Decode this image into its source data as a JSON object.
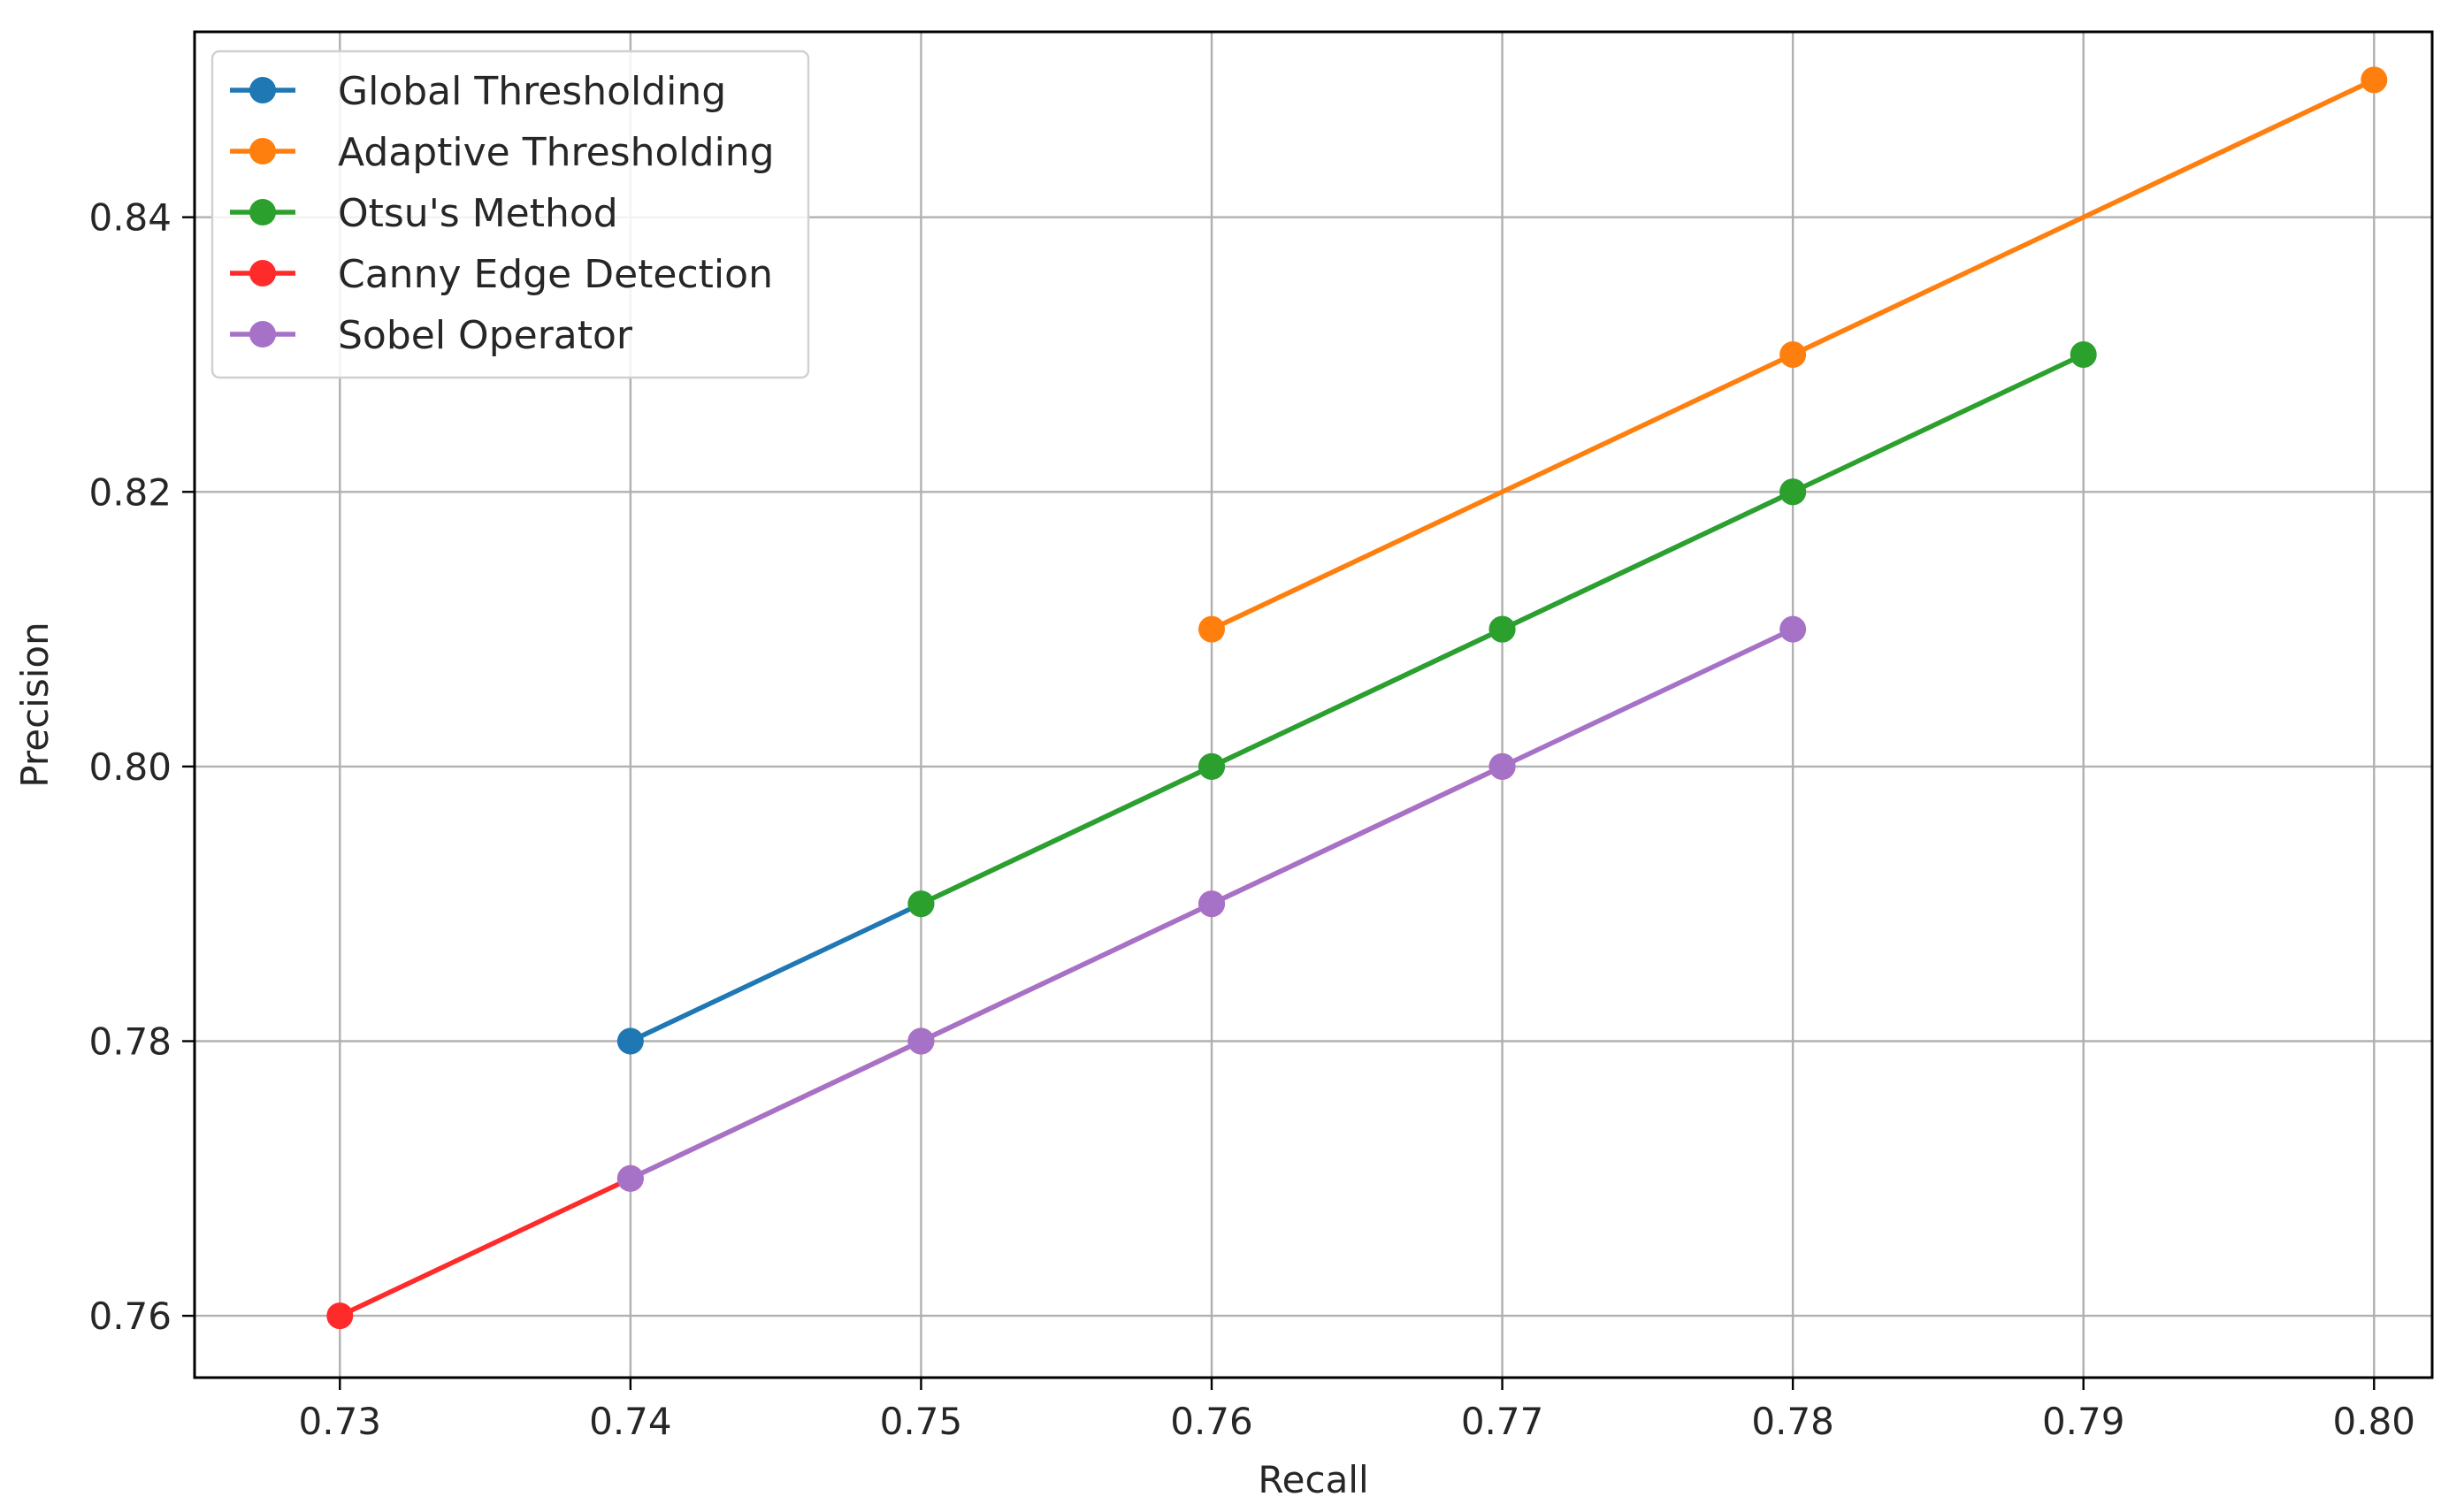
{
  "chart_data": {
    "type": "line",
    "title": "",
    "xlabel": "Recall",
    "ylabel": "Precision",
    "xlim": [
      0.725,
      0.802
    ],
    "ylim": [
      0.7555,
      0.8535
    ],
    "xticks": [
      "0.73",
      "0.74",
      "0.75",
      "0.76",
      "0.77",
      "0.78",
      "0.79",
      "0.80"
    ],
    "xtick_values": [
      0.73,
      0.74,
      0.75,
      0.76,
      0.77,
      0.78,
      0.79,
      0.8
    ],
    "yticks": [
      "0.76",
      "0.78",
      "0.80",
      "0.82",
      "0.84"
    ],
    "ytick_values": [
      0.76,
      0.78,
      0.8,
      0.82,
      0.84
    ],
    "grid": true,
    "legend_position": "upper-left",
    "series": [
      {
        "name": "Global Thresholding",
        "color": "#1f77b4",
        "x": [
          0.74,
          0.75,
          0.76,
          0.77,
          0.78
        ],
        "y": [
          0.78,
          0.79,
          0.8,
          0.81,
          0.82
        ]
      },
      {
        "name": "Adaptive Thresholding",
        "color": "#ff7f0e",
        "x": [
          0.76,
          0.78,
          0.8
        ],
        "y": [
          0.81,
          0.83,
          0.85
        ]
      },
      {
        "name": "Otsu's Method",
        "color": "#2ca02c",
        "x": [
          0.75,
          0.76,
          0.77,
          0.78,
          0.79
        ],
        "y": [
          0.79,
          0.8,
          0.81,
          0.82,
          0.83
        ]
      },
      {
        "name": "Canny Edge Detection",
        "color": "#ff2a2a",
        "x": [
          0.73,
          0.74,
          0.75,
          0.76,
          0.77
        ],
        "y": [
          0.76,
          0.77,
          0.78,
          0.79,
          0.8
        ]
      },
      {
        "name": "Sobel Operator",
        "color": "#a672c8",
        "x": [
          0.74,
          0.75,
          0.76,
          0.77,
          0.78
        ],
        "y": [
          0.77,
          0.78,
          0.79,
          0.8,
          0.81
        ]
      }
    ]
  }
}
